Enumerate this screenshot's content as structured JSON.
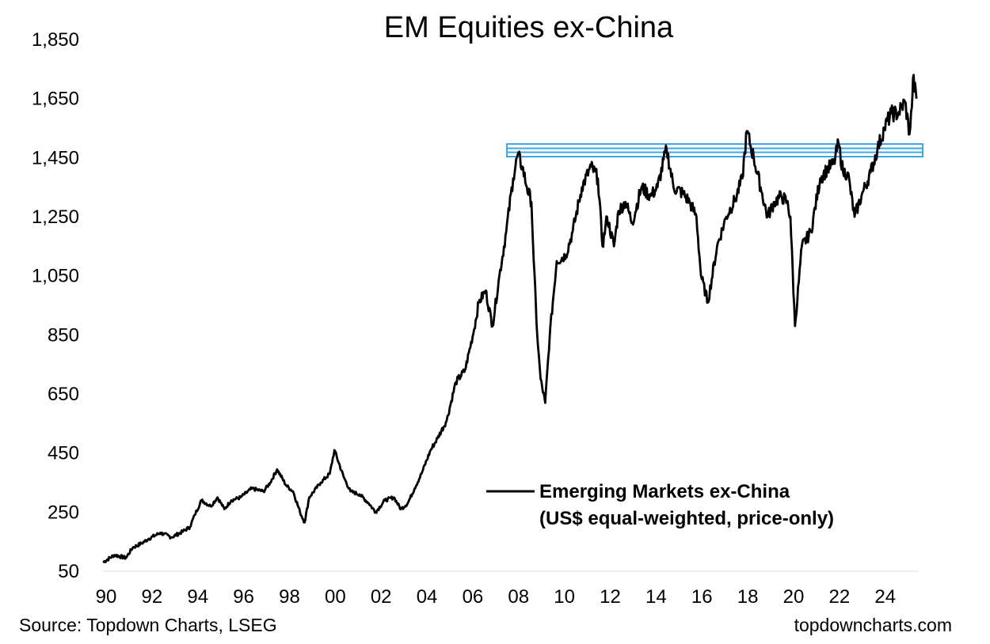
{
  "chart_data": {
    "type": "line",
    "title": "EM Equities ex-China",
    "xlabel": "",
    "ylabel": "",
    "xlim": [
      1990,
      2025.6
    ],
    "ylim": [
      50,
      1850
    ],
    "yticks": [
      50,
      250,
      450,
      650,
      850,
      1050,
      1250,
      1450,
      1650,
      1850
    ],
    "ytick_labels": [
      "50",
      "250",
      "450",
      "650",
      "850",
      "1,050",
      "1,250",
      "1,450",
      "1,650",
      "1,850"
    ],
    "xtick_labels": [
      "90",
      "92",
      "94",
      "96",
      "98",
      "00",
      "02",
      "04",
      "06",
      "08",
      "10",
      "12",
      "14",
      "16",
      "18",
      "20",
      "22",
      "24"
    ],
    "grid": false,
    "legend": "center-right",
    "series": [
      {
        "name": "Emerging Markets ex-China",
        "name_line2": "(US$ equal-weighted, price-only)",
        "color": "#000000",
        "x": [
          1990.0,
          1990.5,
          1991.0,
          1991.3,
          1991.7,
          1992.0,
          1992.5,
          1993.0,
          1993.5,
          1993.8,
          1994.0,
          1994.3,
          1994.7,
          1995.0,
          1995.3,
          1995.6,
          1996.0,
          1996.5,
          1997.0,
          1997.3,
          1997.6,
          1998.0,
          1998.3,
          1998.6,
          1998.8,
          1999.0,
          1999.5,
          1999.9,
          2000.1,
          2000.5,
          2000.8,
          2001.2,
          2001.6,
          2001.9,
          2002.3,
          2002.7,
          2003.0,
          2003.3,
          2003.6,
          2003.9,
          2004.3,
          2004.6,
          2005.0,
          2005.4,
          2005.8,
          2006.2,
          2006.4,
          2006.7,
          2007.0,
          2007.3,
          2007.6,
          2007.9,
          2008.1,
          2008.3,
          2008.5,
          2008.7,
          2008.8,
          2008.95,
          2009.1,
          2009.3,
          2009.5,
          2009.8,
          2010.2,
          2010.5,
          2010.9,
          2011.3,
          2011.6,
          2011.8,
          2012.0,
          2012.3,
          2012.5,
          2012.8,
          2013.1,
          2013.5,
          2013.9,
          2014.2,
          2014.6,
          2014.9,
          2015.3,
          2015.6,
          2015.9,
          2016.1,
          2016.4,
          2016.8,
          2017.2,
          2017.6,
          2017.9,
          2018.1,
          2018.4,
          2018.7,
          2019.0,
          2019.3,
          2019.6,
          2019.85,
          2020.0,
          2020.2,
          2020.5,
          2020.9,
          2021.3,
          2021.6,
          2021.9,
          2022.1,
          2022.3,
          2022.5,
          2022.8,
          2023.1,
          2023.5,
          2023.8,
          2024.1,
          2024.4,
          2024.7,
          2025.0,
          2025.2,
          2025.3,
          2025.35,
          2025.5
        ],
        "values": [
          80,
          105,
          95,
          130,
          145,
          160,
          180,
          165,
          185,
          200,
          240,
          290,
          270,
          300,
          260,
          290,
          300,
          330,
          320,
          350,
          395,
          340,
          320,
          250,
          215,
          300,
          350,
          380,
          460,
          370,
          320,
          310,
          280,
          250,
          290,
          300,
          260,
          280,
          330,
          380,
          460,
          500,
          560,
          690,
          730,
          870,
          960,
          1000,
          880,
          1050,
          1200,
          1380,
          1460,
          1420,
          1350,
          1300,
          1100,
          850,
          700,
          620,
          850,
          1100,
          1120,
          1200,
          1350,
          1420,
          1380,
          1150,
          1250,
          1150,
          1270,
          1300,
          1230,
          1350,
          1320,
          1350,
          1480,
          1350,
          1330,
          1300,
          1250,
          1050,
          960,
          1150,
          1250,
          1310,
          1380,
          1540,
          1450,
          1350,
          1250,
          1300,
          1320,
          1300,
          1250,
          880,
          1150,
          1200,
          1380,
          1410,
          1430,
          1500,
          1400,
          1400,
          1250,
          1320,
          1400,
          1480,
          1550,
          1600,
          1600,
          1640,
          1530,
          1620,
          1720,
          1650
        ]
      }
    ],
    "annotations": [
      {
        "type": "horizontal-band",
        "y": 1475,
        "color": "#3ea7e6"
      }
    ],
    "source": "Source: Topdown Charts, LSEG",
    "website": "topdowncharts.com"
  }
}
